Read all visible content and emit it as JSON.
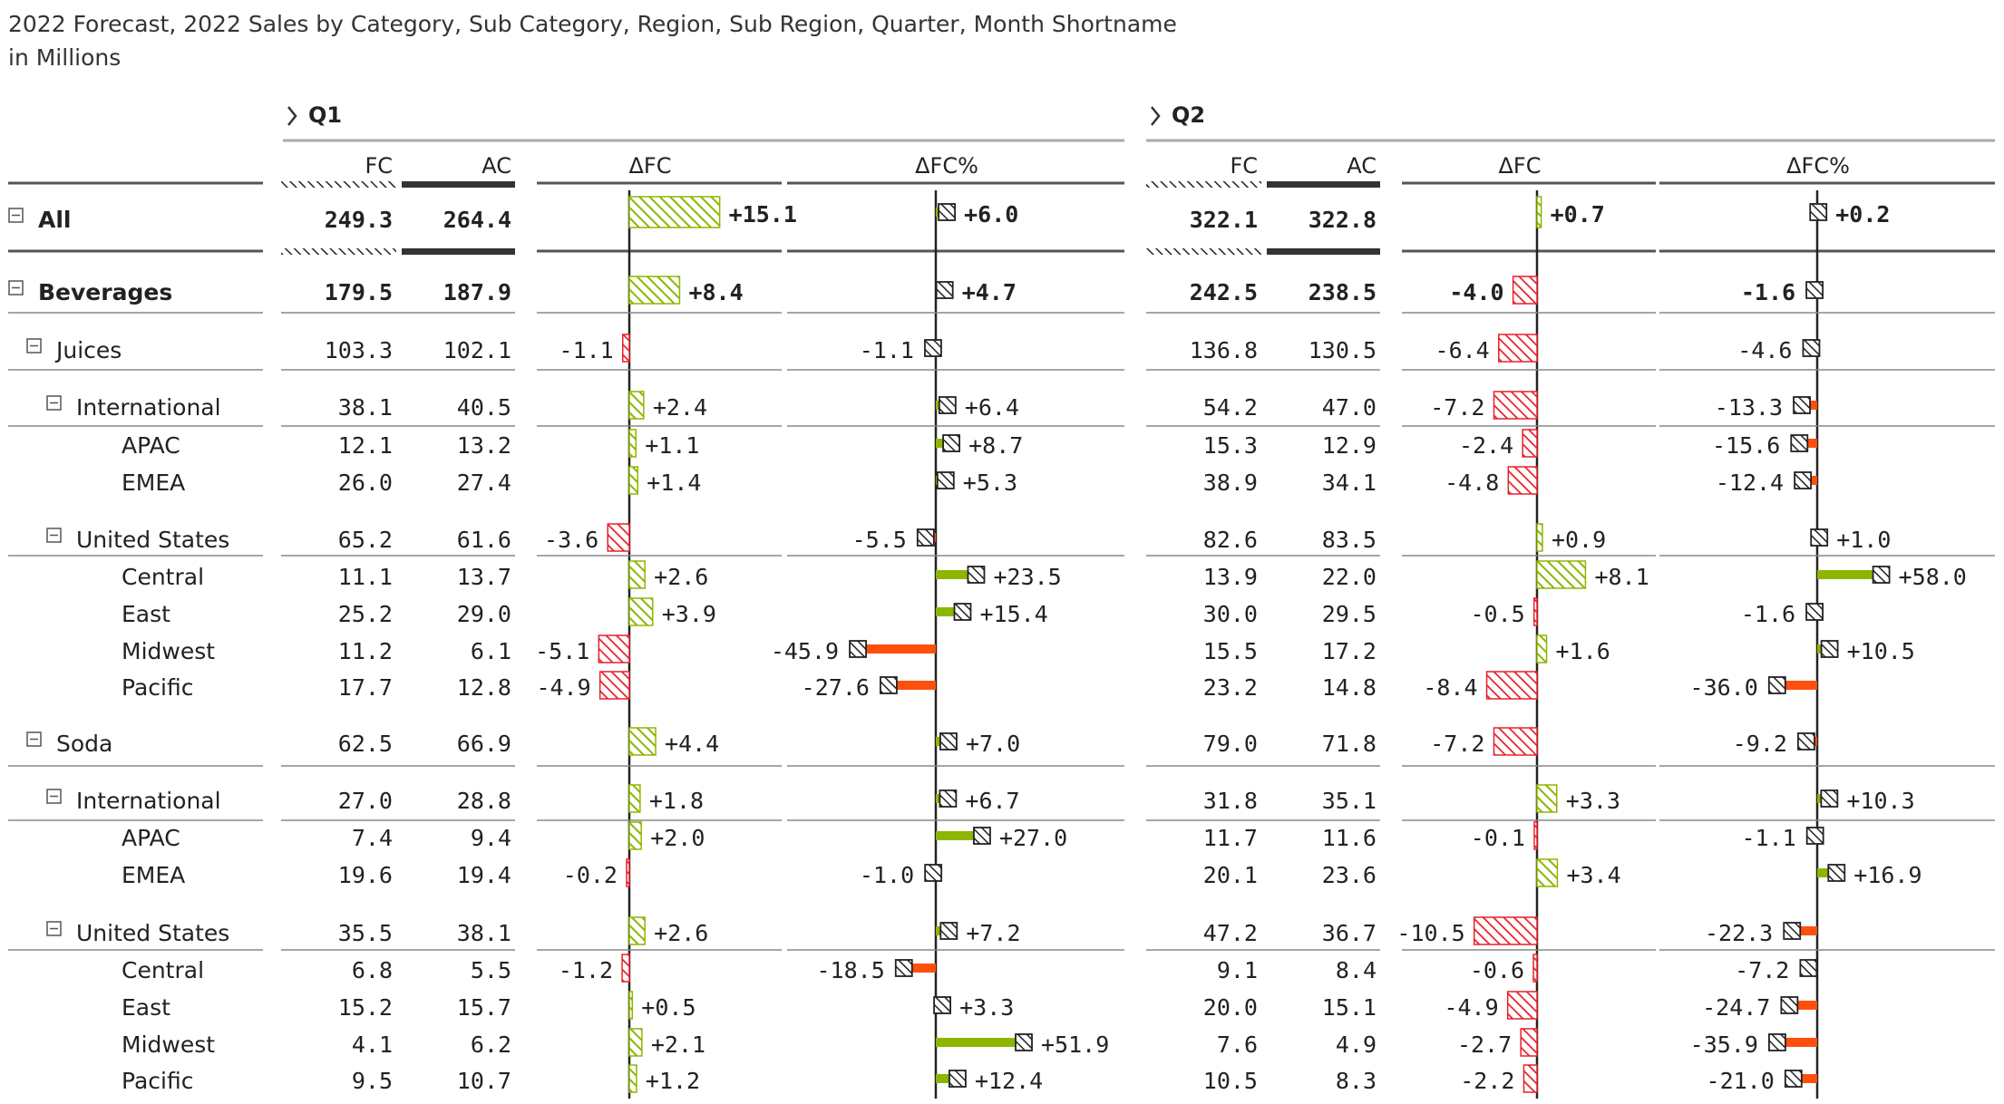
{
  "title": {
    "line1": "2022 Forecast, 2022 Sales by Category, Sub Category, Region, Sub Region, Quarter, Month Shortname",
    "line2": "in Millions"
  },
  "quarters": [
    "Q1",
    "Q2"
  ],
  "column_headers": {
    "fc": "FC",
    "ac": "AC",
    "dfc": "ΔFC",
    "dfcpct": "ΔFC%"
  },
  "colors": {
    "positive": "#8DB600",
    "negative": "#E8202A",
    "pct_negative": "#FF4F0E",
    "ac_bar": "#333333",
    "text": "#222222"
  },
  "icons": {
    "expand_quarter": "chevron-right-icon",
    "collapse_row": "minus-box-icon"
  },
  "chart_data": {
    "type": "table",
    "units": "Millions",
    "rows": [
      {
        "label": "All",
        "level": 0,
        "bold": true,
        "expander": true,
        "q1": {
          "fc": "249.3",
          "ac": "264.4",
          "dfc": 15.1,
          "dfcpct": 6.0
        },
        "q2": {
          "fc": "322.1",
          "ac": "322.8",
          "dfc": 0.7,
          "dfcpct": 0.2
        }
      },
      {
        "label": "Beverages",
        "level": 0,
        "bold": true,
        "expander": true,
        "q1": {
          "fc": "179.5",
          "ac": "187.9",
          "dfc": 8.4,
          "dfcpct": 4.7
        },
        "q2": {
          "fc": "242.5",
          "ac": "238.5",
          "dfc": -4.0,
          "dfcpct": -1.6
        }
      },
      {
        "label": "Juices",
        "level": 1,
        "bold": false,
        "expander": true,
        "q1": {
          "fc": "103.3",
          "ac": "102.1",
          "dfc": -1.1,
          "dfcpct": -1.1
        },
        "q2": {
          "fc": "136.8",
          "ac": "130.5",
          "dfc": -6.4,
          "dfcpct": -4.6
        }
      },
      {
        "label": "International",
        "level": 2,
        "bold": false,
        "expander": true,
        "q1": {
          "fc": "38.1",
          "ac": "40.5",
          "dfc": 2.4,
          "dfcpct": 6.4
        },
        "q2": {
          "fc": "54.2",
          "ac": "47.0",
          "dfc": -7.2,
          "dfcpct": -13.3
        }
      },
      {
        "label": "APAC",
        "level": 3,
        "bold": false,
        "expander": false,
        "q1": {
          "fc": "12.1",
          "ac": "13.2",
          "dfc": 1.1,
          "dfcpct": 8.7
        },
        "q2": {
          "fc": "15.3",
          "ac": "12.9",
          "dfc": -2.4,
          "dfcpct": -15.6
        }
      },
      {
        "label": "EMEA",
        "level": 3,
        "bold": false,
        "expander": false,
        "q1": {
          "fc": "26.0",
          "ac": "27.4",
          "dfc": 1.4,
          "dfcpct": 5.3
        },
        "q2": {
          "fc": "38.9",
          "ac": "34.1",
          "dfc": -4.8,
          "dfcpct": -12.4
        }
      },
      {
        "label": "United States",
        "level": 2,
        "bold": false,
        "expander": true,
        "q1": {
          "fc": "65.2",
          "ac": "61.6",
          "dfc": -3.6,
          "dfcpct": -5.5
        },
        "q2": {
          "fc": "82.6",
          "ac": "83.5",
          "dfc": 0.9,
          "dfcpct": 1.0
        }
      },
      {
        "label": "Central",
        "level": 3,
        "bold": false,
        "expander": false,
        "q1": {
          "fc": "11.1",
          "ac": "13.7",
          "dfc": 2.6,
          "dfcpct": 23.5
        },
        "q2": {
          "fc": "13.9",
          "ac": "22.0",
          "dfc": 8.1,
          "dfcpct": 58.0
        }
      },
      {
        "label": "East",
        "level": 3,
        "bold": false,
        "expander": false,
        "q1": {
          "fc": "25.2",
          "ac": "29.0",
          "dfc": 3.9,
          "dfcpct": 15.4
        },
        "q2": {
          "fc": "30.0",
          "ac": "29.5",
          "dfc": -0.5,
          "dfcpct": -1.6
        }
      },
      {
        "label": "Midwest",
        "level": 3,
        "bold": false,
        "expander": false,
        "q1": {
          "fc": "11.2",
          "ac": "6.1",
          "dfc": -5.1,
          "dfcpct": -45.9
        },
        "q2": {
          "fc": "15.5",
          "ac": "17.2",
          "dfc": 1.6,
          "dfcpct": 10.5
        }
      },
      {
        "label": "Pacific",
        "level": 3,
        "bold": false,
        "expander": false,
        "q1": {
          "fc": "17.7",
          "ac": "12.8",
          "dfc": -4.9,
          "dfcpct": -27.6
        },
        "q2": {
          "fc": "23.2",
          "ac": "14.8",
          "dfc": -8.4,
          "dfcpct": -36.0
        }
      },
      {
        "label": "Soda",
        "level": 1,
        "bold": false,
        "expander": true,
        "q1": {
          "fc": "62.5",
          "ac": "66.9",
          "dfc": 4.4,
          "dfcpct": 7.0
        },
        "q2": {
          "fc": "79.0",
          "ac": "71.8",
          "dfc": -7.2,
          "dfcpct": -9.2
        }
      },
      {
        "label": "International",
        "level": 2,
        "bold": false,
        "expander": true,
        "q1": {
          "fc": "27.0",
          "ac": "28.8",
          "dfc": 1.8,
          "dfcpct": 6.7
        },
        "q2": {
          "fc": "31.8",
          "ac": "35.1",
          "dfc": 3.3,
          "dfcpct": 10.3
        }
      },
      {
        "label": "APAC",
        "level": 3,
        "bold": false,
        "expander": false,
        "q1": {
          "fc": "7.4",
          "ac": "9.4",
          "dfc": 2.0,
          "dfcpct": 27.0
        },
        "q2": {
          "fc": "11.7",
          "ac": "11.6",
          "dfc": -0.1,
          "dfcpct": -1.1
        }
      },
      {
        "label": "EMEA",
        "level": 3,
        "bold": false,
        "expander": false,
        "q1": {
          "fc": "19.6",
          "ac": "19.4",
          "dfc": -0.2,
          "dfcpct": -1.0
        },
        "q2": {
          "fc": "20.1",
          "ac": "23.6",
          "dfc": 3.4,
          "dfcpct": 16.9
        }
      },
      {
        "label": "United States",
        "level": 2,
        "bold": false,
        "expander": true,
        "q1": {
          "fc": "35.5",
          "ac": "38.1",
          "dfc": 2.6,
          "dfcpct": 7.2
        },
        "q2": {
          "fc": "47.2",
          "ac": "36.7",
          "dfc": -10.5,
          "dfcpct": -22.3
        }
      },
      {
        "label": "Central",
        "level": 3,
        "bold": false,
        "expander": false,
        "q1": {
          "fc": "6.8",
          "ac": "5.5",
          "dfc": -1.2,
          "dfcpct": -18.5
        },
        "q2": {
          "fc": "9.1",
          "ac": "8.4",
          "dfc": -0.6,
          "dfcpct": -7.2
        }
      },
      {
        "label": "East",
        "level": 3,
        "bold": false,
        "expander": false,
        "q1": {
          "fc": "15.2",
          "ac": "15.7",
          "dfc": 0.5,
          "dfcpct": 3.3
        },
        "q2": {
          "fc": "20.0",
          "ac": "15.1",
          "dfc": -4.9,
          "dfcpct": -24.7
        }
      },
      {
        "label": "Midwest",
        "level": 3,
        "bold": false,
        "expander": false,
        "q1": {
          "fc": "4.1",
          "ac": "6.2",
          "dfc": 2.1,
          "dfcpct": 51.9
        },
        "q2": {
          "fc": "7.6",
          "ac": "4.9",
          "dfc": -2.7,
          "dfcpct": -35.9
        }
      },
      {
        "label": "Pacific",
        "level": 3,
        "bold": false,
        "expander": false,
        "q1": {
          "fc": "9.5",
          "ac": "10.7",
          "dfc": 1.2,
          "dfcpct": 12.4
        },
        "q2": {
          "fc": "10.5",
          "ac": "8.3",
          "dfc": -2.2,
          "dfcpct": -21.0
        }
      }
    ]
  }
}
